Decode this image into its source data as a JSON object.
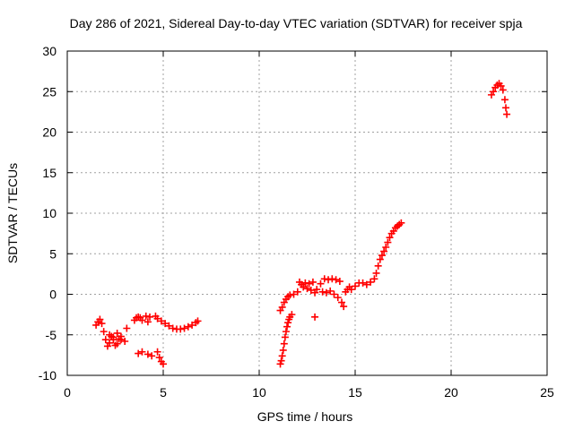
{
  "chart_data": {
    "type": "scatter",
    "title": "Day 286 of 2021, Sidereal Day-to-day VTEC variation (SDTVAR) for receiver spja",
    "xlabel": "GPS time / hours",
    "ylabel": "SDTVAR / TECUs",
    "xlim": [
      0,
      25
    ],
    "ylim": [
      -10,
      30
    ],
    "xticks": [
      0,
      5,
      10,
      15,
      20,
      25
    ],
    "yticks": [
      -10,
      -5,
      0,
      5,
      10,
      15,
      20,
      25,
      30
    ],
    "grid": true,
    "marker": "+",
    "color": "#ff0000",
    "series": [
      {
        "name": "SDTVAR",
        "points": [
          [
            1.5,
            -3.8
          ],
          [
            1.6,
            -3.4
          ],
          [
            1.7,
            -3.1
          ],
          [
            1.8,
            -3.6
          ],
          [
            1.9,
            -4.6
          ],
          [
            2.0,
            -5.6
          ],
          [
            2.1,
            -6.4
          ],
          [
            2.2,
            -6.0
          ],
          [
            2.3,
            -5.2
          ],
          [
            2.4,
            -5.6
          ],
          [
            2.5,
            -6.3
          ],
          [
            2.6,
            -6.1
          ],
          [
            2.7,
            -5.5
          ],
          [
            2.8,
            -5.2
          ],
          [
            3.0,
            -5.8
          ],
          [
            3.1,
            -4.2
          ],
          [
            2.2,
            -5.0
          ],
          [
            2.4,
            -5.3
          ],
          [
            2.6,
            -4.8
          ],
          [
            2.8,
            -5.6
          ],
          [
            3.5,
            -3.2
          ],
          [
            3.6,
            -2.9
          ],
          [
            3.7,
            -2.8
          ],
          [
            3.8,
            -2.9
          ],
          [
            3.9,
            -3.2
          ],
          [
            3.7,
            -7.3
          ],
          [
            3.9,
            -7.1
          ],
          [
            4.1,
            -2.7
          ],
          [
            4.2,
            -3.4
          ],
          [
            4.3,
            -2.8
          ],
          [
            4.2,
            -7.4
          ],
          [
            4.4,
            -7.6
          ],
          [
            4.6,
            -2.7
          ],
          [
            4.7,
            -7.1
          ],
          [
            4.8,
            -7.8
          ],
          [
            4.9,
            -8.3
          ],
          [
            5.0,
            -8.6
          ],
          [
            4.7,
            -3.0
          ],
          [
            4.9,
            -3.3
          ],
          [
            5.1,
            -3.6
          ],
          [
            5.3,
            -3.9
          ],
          [
            5.5,
            -4.2
          ],
          [
            5.7,
            -4.3
          ],
          [
            5.9,
            -4.3
          ],
          [
            6.1,
            -4.2
          ],
          [
            6.3,
            -4.0
          ],
          [
            6.5,
            -3.8
          ],
          [
            6.7,
            -3.5
          ],
          [
            6.8,
            -3.3
          ],
          [
            11.1,
            -8.6
          ],
          [
            11.15,
            -8.2
          ],
          [
            11.2,
            -7.6
          ],
          [
            11.25,
            -6.9
          ],
          [
            11.3,
            -6.1
          ],
          [
            11.35,
            -5.3
          ],
          [
            11.4,
            -4.6
          ],
          [
            11.45,
            -4.0
          ],
          [
            11.5,
            -3.5
          ],
          [
            11.55,
            -3.1
          ],
          [
            11.6,
            -2.8
          ],
          [
            11.7,
            -2.5
          ],
          [
            11.1,
            -2.0
          ],
          [
            11.2,
            -1.6
          ],
          [
            11.3,
            -1.0
          ],
          [
            11.4,
            -0.6
          ],
          [
            11.5,
            -0.3
          ],
          [
            11.6,
            -0.1
          ],
          [
            11.8,
            0.0
          ],
          [
            12.0,
            0.3
          ],
          [
            12.1,
            1.5
          ],
          [
            12.2,
            1.2
          ],
          [
            12.3,
            0.9
          ],
          [
            12.4,
            1.4
          ],
          [
            12.5,
            0.7
          ],
          [
            12.6,
            1.3
          ],
          [
            12.7,
            0.5
          ],
          [
            12.8,
            1.5
          ],
          [
            12.9,
            0.2
          ],
          [
            13.0,
            0.6
          ],
          [
            12.9,
            -2.8
          ],
          [
            13.2,
            1.3
          ],
          [
            13.3,
            0.3
          ],
          [
            13.4,
            1.9
          ],
          [
            13.5,
            0.2
          ],
          [
            13.6,
            1.8
          ],
          [
            13.7,
            0.4
          ],
          [
            13.8,
            1.9
          ],
          [
            13.9,
            0.0
          ],
          [
            14.0,
            1.8
          ],
          [
            14.1,
            -0.4
          ],
          [
            14.2,
            1.6
          ],
          [
            14.3,
            -1.0
          ],
          [
            14.4,
            -1.5
          ],
          [
            14.5,
            0.3
          ],
          [
            14.6,
            0.6
          ],
          [
            14.7,
            0.9
          ],
          [
            14.8,
            0.6
          ],
          [
            15.0,
            1.0
          ],
          [
            15.2,
            1.4
          ],
          [
            15.4,
            1.4
          ],
          [
            15.6,
            1.2
          ],
          [
            15.8,
            1.5
          ],
          [
            16.0,
            1.9
          ],
          [
            16.1,
            2.6
          ],
          [
            16.2,
            3.5
          ],
          [
            16.3,
            4.3
          ],
          [
            16.4,
            4.8
          ],
          [
            16.5,
            5.3
          ],
          [
            16.6,
            5.8
          ],
          [
            16.7,
            6.4
          ],
          [
            16.8,
            7.0
          ],
          [
            16.9,
            7.5
          ],
          [
            17.0,
            7.8
          ],
          [
            17.1,
            8.2
          ],
          [
            17.2,
            8.4
          ],
          [
            17.3,
            8.6
          ],
          [
            17.4,
            8.8
          ],
          [
            22.1,
            24.6
          ],
          [
            22.2,
            25.0
          ],
          [
            22.3,
            25.5
          ],
          [
            22.4,
            25.8
          ],
          [
            22.5,
            26.0
          ],
          [
            22.6,
            25.7
          ],
          [
            22.7,
            25.2
          ],
          [
            22.8,
            24.0
          ],
          [
            22.85,
            23.0
          ],
          [
            22.9,
            22.2
          ]
        ]
      }
    ]
  }
}
